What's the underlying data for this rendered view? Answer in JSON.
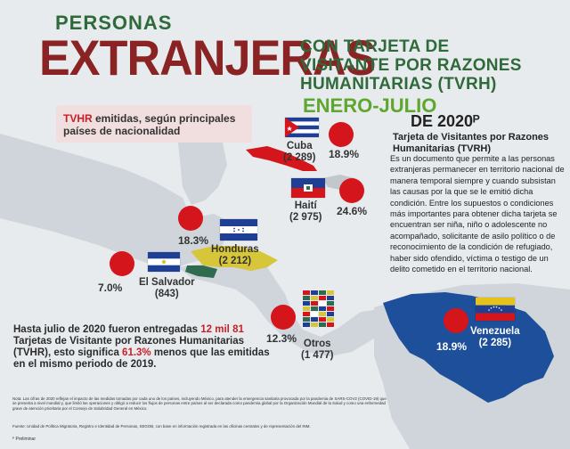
{
  "title": {
    "line1": "PERSONAS",
    "line2": "EXTRANJERAS",
    "subtitle_lines": [
      "CON TARJETA DE",
      "VISITANTE POR RAZONES",
      "HUMANITARIAS (TVRH)"
    ],
    "period": "ENERO-JULIO",
    "year": "DE 2020ᴾ"
  },
  "box": {
    "highlight": "TVHR",
    "text": " emitidas, según principales países de nacionalidad"
  },
  "countries": [
    {
      "name": "Cuba",
      "count": "(2 289)",
      "percent": "18.9%",
      "value": 2289,
      "share": 18.9
    },
    {
      "name": "Haití",
      "count": "(2 975)",
      "percent": "24.6%",
      "value": 2975,
      "share": 24.6
    },
    {
      "name": "Honduras",
      "count": "(2 212)",
      "percent": "18.3%",
      "value": 2212,
      "share": 18.3
    },
    {
      "name": "El Salvador",
      "count": "(843)",
      "percent": "7.0%",
      "value": 843,
      "share": 7.0
    },
    {
      "name": "Otros",
      "count": "(1 477)",
      "percent": "12.3%",
      "value": 1477,
      "share": 12.3
    },
    {
      "name": "Venezuela",
      "count": "(2 285)",
      "percent": "18.9%",
      "value": 2285,
      "share": 18.9
    }
  ],
  "info": {
    "title": "Tarjeta de Visitantes por Razones Humanitarias (TVRH)",
    "body": "Es un documento que permite a las personas extranjeras permanecer en territorio nacional de manera temporal siempre y cuando subsistan las causas por la que se le emitió dicha condición. Entre los supuestos o condiciones más importantes para obtener dicha tarjeta se encuentran ser niña, niño o adolescente no acompañado, solicitante de asilo político o de reconocimiento de la condición de refugiado, haber sido ofendido, víctima o testigo de un delito cometido en el territorio nacional."
  },
  "summary": {
    "p1": "Hasta julio de 2020 fueron entregadas ",
    "highlight1": "12 mil 81",
    "p2": " Tarjetas de Visitante por Razones Humanitarias (TVHR), esto significa ",
    "highlight2": "61.3%",
    "p3": " menos que las emitidas en el mismo periodo de 2019."
  },
  "notes": {
    "nota": "Nota: Las cifras de 2020 reflejan el impacto de las medidas tomadas por cada uno de los países, incluyendo México, para atender la emergencia sanitaria provocada por la pandemia de SARS-COV2 (COVID-19) que se presenta a nivel mundial y, que limitó las operaciones y obligó a reducir los flujos de personas entre países al ser declarada como pandemia global por la Organización Mundial de la Salud y como una enfermedad grave de atención prioritaria por el Consejo de Salubridad General en México.",
    "fuente": "Fuente: Unidad de Política Migratoria, Registro e Identidad de Personas, SEGOB, con base en información registrada en las oficinas centrales y de representación del INM.",
    "preliminar": "ᴾ Preliminar"
  },
  "colors": {
    "background": "#e7ebee",
    "dark_green": "#2f6a3a",
    "dark_red": "#8a2323",
    "light_green": "#5fa72e",
    "accent_red": "#d4151c",
    "venezuela_blue": "#1d4f9a",
    "honduras_yellow": "#d7c63a",
    "salvador_green": "#2e6b4f"
  }
}
